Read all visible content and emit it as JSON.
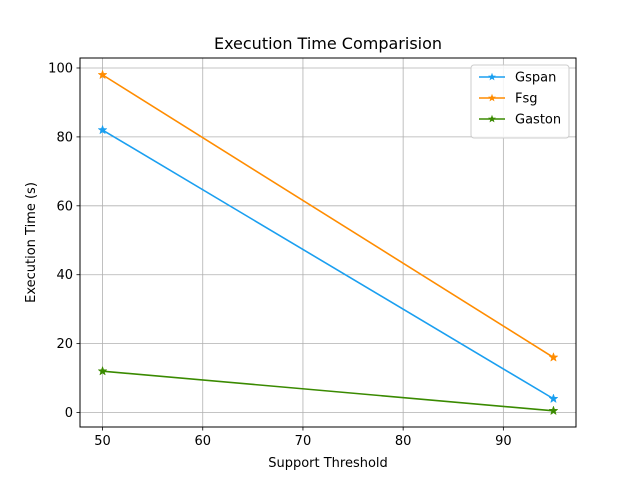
{
  "chart_data": {
    "type": "line",
    "title": "Execution Time Comparision",
    "xlabel": "Support Threshold",
    "ylabel": "Execution Time (s)",
    "x": [
      50,
      95
    ],
    "xlim": [
      47.75,
      97.25
    ],
    "ylim": [
      -4.2,
      102.9
    ],
    "xticks": [
      50,
      60,
      70,
      80,
      90
    ],
    "yticks": [
      0,
      20,
      40,
      60,
      80,
      100
    ],
    "grid": true,
    "legend_position": "top-right",
    "marker": "star",
    "series": [
      {
        "name": "Gspan",
        "values": [
          82,
          4
        ],
        "color": "#1a9ff0"
      },
      {
        "name": "Fsg",
        "values": [
          98,
          16
        ],
        "color": "#ff8c00"
      },
      {
        "name": "Gaston",
        "values": [
          12,
          0.5
        ],
        "color": "#3a8a00"
      }
    ]
  }
}
